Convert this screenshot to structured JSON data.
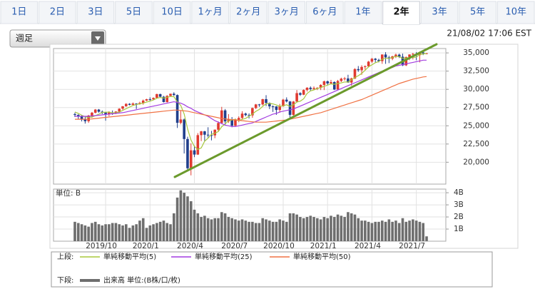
{
  "tabs": [
    "1日",
    "2日",
    "3日",
    "5日",
    "10日",
    "1ヶ月",
    "2ヶ月",
    "3ヶ月",
    "6ヶ月",
    "1年",
    "2年",
    "3年",
    "5年",
    "10年"
  ],
  "active_tab": "2年",
  "dropdown": "週足",
  "timestamp": "21/08/02 17:06 EST",
  "chart_data": [
    {
      "type": "candlestick",
      "legend_title": "上段:",
      "up_color": "#e03a30",
      "down_color": "#203f8c",
      "open": [
        26600,
        26485,
        26287,
        25886,
        25628,
        26403,
        26797,
        27220,
        26935,
        26820,
        26573,
        26816,
        26770,
        26958,
        27347,
        27681,
        28005,
        27875,
        28051,
        28015,
        28135,
        28455,
        28645,
        28634,
        28823,
        29348,
        28990,
        28256,
        29102,
        29398,
        29219,
        25409,
        25864,
        23185,
        19174,
        21636,
        21052,
        23719,
        24242,
        23775,
        23723,
        23685,
        24465,
        25383,
        27111,
        25605,
        25871,
        25015,
        25827,
        26075,
        26672,
        26470,
        26428,
        27433,
        27931,
        27930,
        28653,
        28133,
        27666,
        27657,
        27173,
        27682,
        28586,
        28335,
        26502,
        28323,
        29479,
        29263,
        29910,
        30218,
        30046,
        30179,
        30199,
        30606,
        31098,
        30814,
        30997,
        29983,
        31148,
        31458,
        31494,
        30932,
        31496,
        32779,
        32628,
        33073,
        33153,
        33801,
        34200,
        34043,
        33875,
        34778,
        34382,
        34208,
        34529,
        34756,
        34480,
        33290,
        34433,
        34786,
        34870,
        34688,
        35061,
        34935
      ],
      "high": [
        26800,
        26600,
        26500,
        26200,
        26500,
        26900,
        27300,
        27300,
        27100,
        26900,
        27000,
        27100,
        27000,
        27400,
        27700,
        28100,
        28100,
        28200,
        28100,
        28300,
        28600,
        28700,
        28900,
        28900,
        29400,
        29400,
        29100,
        29200,
        29400,
        29600,
        29300,
        27100,
        26000,
        23500,
        22600,
        22300,
        24000,
        24300,
        24300,
        24800,
        24300,
        24500,
        25600,
        27600,
        27300,
        26600,
        26200,
        26000,
        26300,
        27000,
        26800,
        26700,
        27500,
        28000,
        28000,
        28700,
        29200,
        28200,
        27800,
        27700,
        28000,
        28700,
        28900,
        28400,
        28400,
        29900,
        29600,
        30000,
        30300,
        30400,
        30400,
        30300,
        30700,
        31200,
        31200,
        31300,
        31100,
        31300,
        31600,
        31700,
        32000,
        31600,
        32900,
        33200,
        33300,
        33300,
        33900,
        34300,
        34300,
        34200,
        34800,
        35100,
        34600,
        34600,
        34900,
        34900,
        34900,
        34500,
        34800,
        35000,
        35100,
        35200,
        35200,
        35000
      ],
      "low": [
        26200,
        25900,
        25600,
        25300,
        25400,
        26100,
        26700,
        26800,
        26600,
        25700,
        26300,
        26500,
        26600,
        26800,
        27200,
        27600,
        27800,
        27800,
        27300,
        27900,
        27900,
        28400,
        28400,
        28500,
        28800,
        28900,
        28200,
        28200,
        29000,
        29100,
        24700,
        25200,
        21200,
        19000,
        18200,
        20700,
        21000,
        22900,
        22900,
        23400,
        23000,
        23300,
        24200,
        25300,
        25100,
        25400,
        24800,
        24900,
        25500,
        25900,
        26300,
        26000,
        26100,
        27300,
        27600,
        27800,
        27700,
        27300,
        26900,
        26500,
        26800,
        27600,
        28200,
        26100,
        26400,
        28200,
        29100,
        29200,
        29700,
        29800,
        29900,
        29900,
        29900,
        29900,
        30600,
        30700,
        29900,
        29900,
        31000,
        31200,
        30900,
        30500,
        31400,
        32400,
        32000,
        32700,
        33000,
        33600,
        33700,
        33700,
        33500,
        33500,
        33600,
        34000,
        34300,
        34300,
        33200,
        33200,
        34000,
        34100,
        34000,
        33700,
        34700,
        34800
      ],
      "close": [
        26485,
        26287,
        25886,
        25628,
        26403,
        26797,
        27220,
        26935,
        26820,
        26573,
        26816,
        26770,
        26958,
        27347,
        27681,
        28005,
        27875,
        28051,
        28015,
        28135,
        28455,
        28645,
        28634,
        28823,
        29348,
        28990,
        28256,
        29102,
        29398,
        29219,
        25409,
        25864,
        23185,
        19174,
        21636,
        21052,
        23719,
        24242,
        23775,
        23723,
        23685,
        24465,
        25383,
        27111,
        25605,
        25871,
        25015,
        25827,
        26075,
        26672,
        26470,
        26428,
        27433,
        27931,
        27930,
        28653,
        28133,
        27666,
        27657,
        27173,
        27682,
        28586,
        28335,
        26502,
        28323,
        29479,
        29263,
        29910,
        30218,
        30046,
        30179,
        30199,
        30606,
        31098,
        30814,
        30997,
        29983,
        31148,
        31458,
        31494,
        30932,
        31496,
        32779,
        32628,
        33073,
        33153,
        33801,
        34200,
        34043,
        33875,
        34778,
        34382,
        34208,
        34529,
        34756,
        34480,
        33290,
        34433,
        34786,
        34870,
        34688,
        35061,
        34935,
        34950
      ],
      "series": [
        {
          "name": "単純移動平均(5)",
          "color": "#a8c83c",
          "values": [
            26900,
            26700,
            26450,
            26250,
            26138,
            26200,
            26387,
            26597,
            26835,
            26869,
            26873,
            26783,
            26787,
            26893,
            27114,
            27352,
            27573,
            27792,
            27925,
            28016,
            28106,
            28260,
            28377,
            28538,
            28781,
            28888,
            28810,
            28904,
            29019,
            28993,
            28277,
            27798,
            26615,
            24570,
            23054,
            22182,
            21753,
            21965,
            22885,
            23302,
            23829,
            23978,
            24206,
            24873,
            25250,
            25687,
            25797,
            25886,
            25679,
            25892,
            26012,
            26304,
            26616,
            26987,
            27238,
            27675,
            28016,
            28063,
            28008,
            27856,
            27662,
            27753,
            27887,
            27656,
            27886,
            28245,
            28380,
            28695,
            29439,
            29783,
            29923,
            30110,
            30250,
            30426,
            30579,
            30743,
            30700,
            30808,
            30880,
            31016,
            31003,
            31306,
            31632,
            31866,
            32182,
            32626,
            33087,
            33371,
            33654,
            33814,
            34139,
            34256,
            34257,
            34354,
            34531,
            34473,
            34253,
            34298,
            34349,
            34372,
            34413,
            34768,
            34868,
            34901
          ]
        },
        {
          "name": "単純移動平均(25)",
          "color": "#a23ce0",
          "values": [
            26300,
            26300,
            26300,
            26300,
            26300,
            26350,
            26400,
            26450,
            26500,
            26550,
            26600,
            26650,
            26700,
            26750,
            26800,
            26900,
            27000,
            27100,
            27200,
            27300,
            27400,
            27500,
            27600,
            27700,
            27800,
            27900,
            28000,
            28100,
            28200,
            28300,
            28200,
            28100,
            27900,
            27600,
            27400,
            27100,
            26900,
            26700,
            26500,
            26300,
            26000,
            25700,
            25500,
            25300,
            25100,
            25000,
            24900,
            24900,
            25000,
            25100,
            25200,
            25300,
            25400,
            25600,
            25800,
            26000,
            26200,
            26400,
            26600,
            26700,
            26900,
            27000,
            27100,
            27200,
            27300,
            27500,
            27700,
            27900,
            28100,
            28300,
            28500,
            28700,
            28900,
            29100,
            29300,
            29500,
            29700,
            29900,
            30100,
            30300,
            30500,
            30700,
            30900,
            31100,
            31300,
            31500,
            31700,
            31900,
            32100,
            32300,
            32500,
            32700,
            32900,
            33000,
            33200,
            33300,
            33400,
            33500,
            33600,
            33700,
            33800,
            33900,
            34000,
            34000
          ]
        },
        {
          "name": "単純移動平均(50)",
          "color": "#f07244",
          "values": [
            25900,
            25900,
            25900,
            25900,
            25900,
            25950,
            26000,
            26050,
            26100,
            26150,
            26200,
            26250,
            26300,
            26350,
            26400,
            26450,
            26500,
            26550,
            26600,
            26650,
            26700,
            26750,
            26800,
            26850,
            26900,
            26950,
            27000,
            27050,
            27100,
            27150,
            27150,
            27100,
            27050,
            27000,
            26900,
            26800,
            26700,
            26600,
            26500,
            26400,
            26300,
            26200,
            26100,
            26000,
            25950,
            25900,
            25850,
            25800,
            25750,
            25700,
            25650,
            25600,
            25550,
            25500,
            25500,
            25500,
            25500,
            25550,
            25600,
            25650,
            25700,
            25750,
            25800,
            25900,
            26000,
            26100,
            26200,
            26300,
            26400,
            26500,
            26600,
            26700,
            26800,
            26950,
            27100,
            27250,
            27400,
            27550,
            27700,
            27850,
            28000,
            28150,
            28300,
            28450,
            28600,
            28800,
            29000,
            29200,
            29400,
            29600,
            29800,
            30000,
            30200,
            30400,
            30600,
            30800,
            30950,
            31100,
            31250,
            31400,
            31500,
            31600,
            31700,
            31750
          ]
        }
      ],
      "ylim": [
        17000,
        35600
      ],
      "yticks": [
        {
          "value": 20000,
          "label": "20,000"
        },
        {
          "value": 22500,
          "label": "22,500"
        },
        {
          "value": 25000,
          "label": "25,000"
        },
        {
          "value": 27500,
          "label": "27,500"
        },
        {
          "value": 30000,
          "label": "30,000"
        },
        {
          "value": 32500,
          "label": "32,500"
        },
        {
          "value": 35000,
          "label": "35,000"
        }
      ],
      "grid": true
    },
    {
      "type": "bar",
      "legend_title": "下段:",
      "unit_label": "単位: B",
      "categories": [
        null,
        null,
        null,
        null,
        null,
        null,
        null,
        null,
        null,
        "2019/10",
        null,
        null,
        null,
        null,
        null,
        null,
        null,
        null,
        null,
        null,
        null,
        null,
        "2020/1",
        null,
        null,
        null,
        null,
        null,
        null,
        null,
        null,
        null,
        null,
        null,
        null,
        "2020/4",
        null,
        null,
        null,
        null,
        null,
        null,
        null,
        null,
        null,
        null,
        null,
        null,
        "2020/7",
        null,
        null,
        null,
        null,
        null,
        null,
        null,
        null,
        null,
        null,
        null,
        null,
        "2020/10",
        null,
        null,
        null,
        null,
        null,
        null,
        null,
        null,
        null,
        null,
        null,
        null,
        "2021/1",
        null,
        null,
        null,
        null,
        null,
        null,
        null,
        null,
        null,
        null,
        null,
        null,
        "2021/4",
        null,
        null,
        null,
        null,
        null,
        null,
        null,
        null,
        null,
        null,
        null,
        null,
        "2021/7",
        null,
        null,
        null
      ],
      "series": [
        {
          "name": "出来高 単位:(B株/口/枚)",
          "color": "#6e6e6e",
          "values": [
            1.6,
            1.5,
            1.4,
            1.3,
            1.2,
            1.5,
            1.6,
            1.4,
            1.3,
            1.4,
            1.4,
            1.5,
            1.5,
            1.4,
            1.3,
            1.4,
            1.1,
            1.3,
            1.4,
            1.7,
            1.9,
            1.1,
            1.3,
            1.4,
            1.5,
            1.6,
            1.7,
            1.5,
            1.4,
            2.3,
            3.6,
            4.2,
            4.0,
            3.7,
            3.3,
            2.6,
            2.3,
            2.0,
            2.1,
            1.9,
            1.8,
            1.9,
            1.9,
            2.4,
            2.3,
            2.0,
            1.9,
            1.8,
            1.7,
            1.8,
            1.7,
            1.6,
            1.6,
            1.5,
            1.5,
            1.9,
            1.8,
            1.7,
            1.6,
            1.6,
            1.8,
            1.7,
            1.6,
            2.3,
            2.3,
            2.2,
            2.0,
            1.9,
            2.0,
            2.1,
            2.0,
            1.9,
            1.8,
            2.0,
            1.9,
            2.1,
            2.0,
            2.2,
            2.1,
            2.0,
            2.4,
            2.3,
            2.2,
            1.9,
            1.7,
            1.7,
            1.6,
            1.5,
            1.6,
            1.6,
            1.7,
            1.6,
            1.8,
            1.6,
            1.7,
            1.5,
            1.9,
            1.6,
            1.7,
            1.8,
            1.7,
            1.6,
            1.5,
            0.4
          ]
        }
      ],
      "ylim": [
        0,
        4.3
      ],
      "yticks": [
        {
          "value": 1,
          "label": "1B"
        },
        {
          "value": 2,
          "label": "2B"
        },
        {
          "value": 3,
          "label": "3B"
        },
        {
          "value": 4,
          "label": "4B"
        }
      ],
      "grid": true
    }
  ]
}
